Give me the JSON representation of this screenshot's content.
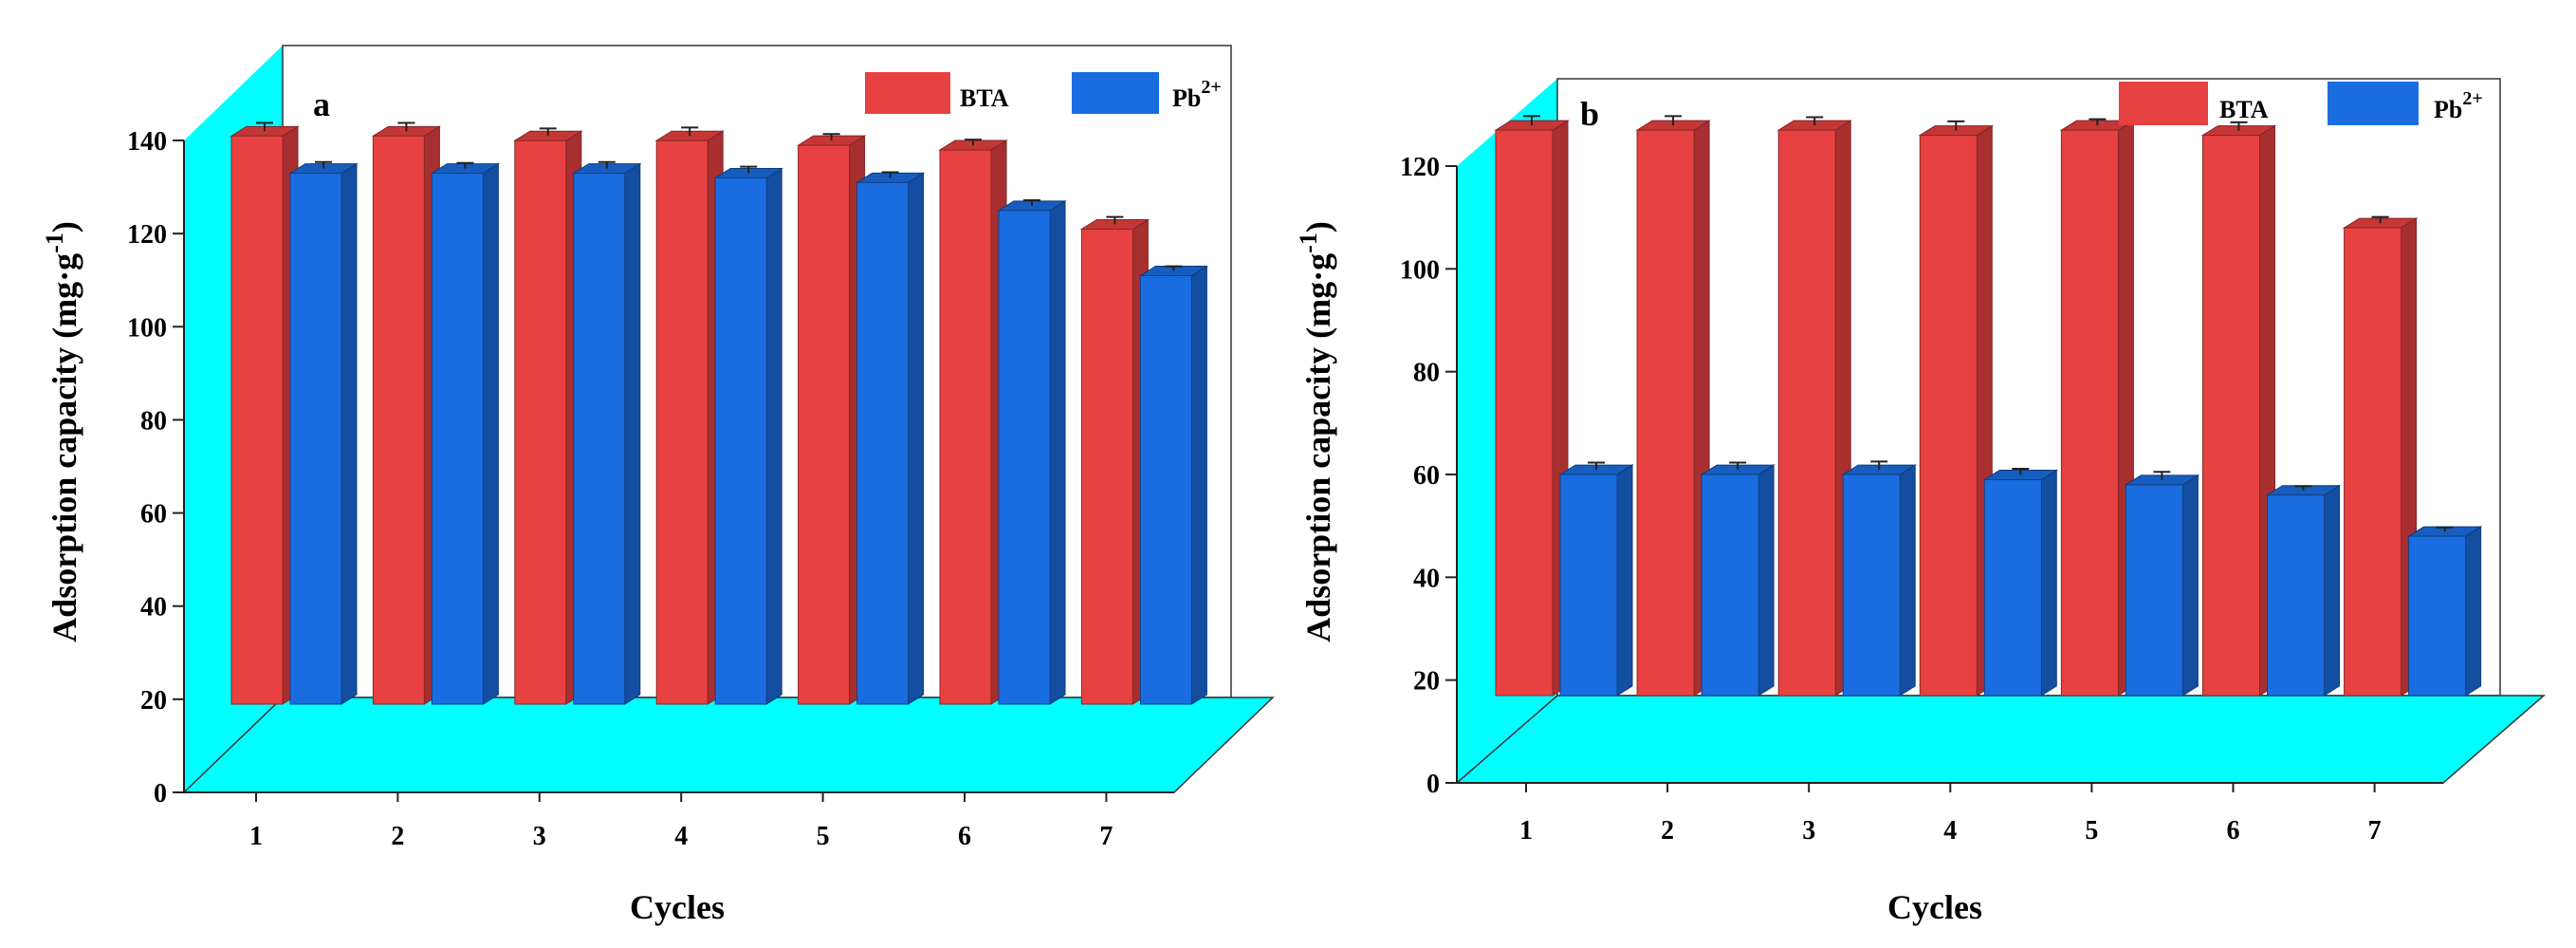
{
  "chart_data": [
    {
      "type": "bar",
      "panel_label": "a",
      "categories": [
        "1",
        "2",
        "3",
        "4",
        "5",
        "6",
        "7"
      ],
      "series": [
        {
          "name": "BTA",
          "color": "#e84141",
          "values": [
            122,
            122,
            121,
            121,
            120,
            119,
            102
          ],
          "errors": [
            1.8,
            1.8,
            1.6,
            1.8,
            1.4,
            1.2,
            1.6
          ]
        },
        {
          "name": "Pb2+",
          "color": "#1a6de0",
          "values": [
            114,
            114,
            114,
            113,
            112,
            106,
            92
          ],
          "errors": [
            1.4,
            1.2,
            1.4,
            1.4,
            1.2,
            1.2,
            1.0
          ]
        }
      ],
      "legend": [
        {
          "label": "BTA",
          "color": "#e84141"
        },
        {
          "label": "Pb",
          "sup": "2+",
          "color": "#1a6de0"
        }
      ],
      "xlabel": "Cycles",
      "ylabel": "Adsorption capacity (mg·g",
      "ylabel_sup": "-1",
      "ylabel_close": ")",
      "yticks": [
        "0",
        "20",
        "40",
        "60",
        "80",
        "100",
        "120",
        "140"
      ],
      "ylim": [
        0,
        140
      ],
      "floor_color": "#00ffff",
      "legend_position": "top-right"
    },
    {
      "type": "bar",
      "panel_label": "b",
      "categories": [
        "1",
        "2",
        "3",
        "4",
        "5",
        "6",
        "7"
      ],
      "series": [
        {
          "name": "BTA",
          "color": "#e84141",
          "values": [
            110,
            110,
            110,
            109,
            110,
            109,
            91
          ],
          "errors": [
            1.8,
            1.8,
            1.6,
            1.8,
            1.2,
            1.6,
            1.2
          ]
        },
        {
          "name": "Pb2+",
          "color": "#1a6de0",
          "values": [
            43,
            43,
            43,
            42,
            41,
            39,
            31
          ],
          "errors": [
            1.4,
            1.4,
            1.6,
            1.2,
            1.6,
            0.8,
            0.8
          ]
        }
      ],
      "legend": [
        {
          "label": "BTA",
          "color": "#e84141"
        },
        {
          "label": "Pb",
          "sup": "2+",
          "color": "#1a6de0"
        }
      ],
      "xlabel": "Cycles",
      "ylabel": "Adsorption capacity (mg·g",
      "ylabel_sup": "-1",
      "ylabel_close": ")",
      "yticks": [
        "0",
        "20",
        "40",
        "60",
        "80",
        "100",
        "120"
      ],
      "ylim": [
        0,
        120
      ],
      "floor_color": "#00ffff",
      "legend_position": "top-right"
    }
  ]
}
